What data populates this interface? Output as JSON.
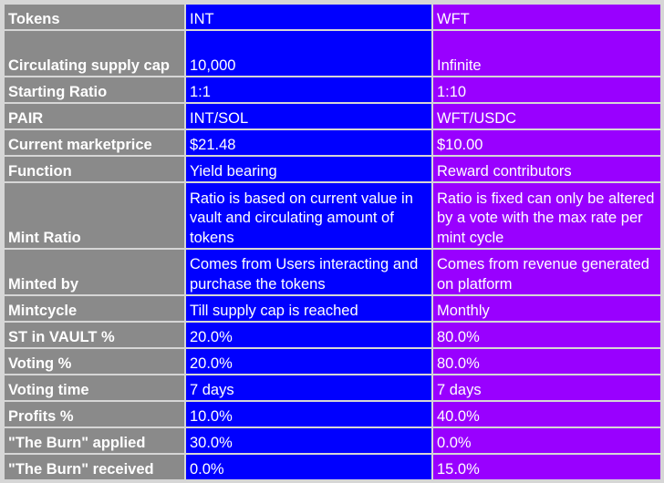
{
  "table": {
    "rows": [
      {
        "label": "Tokens",
        "int": "INT",
        "wft": "WFT"
      },
      {
        "label": "Circulating supply cap",
        "int": "10,000",
        "wft": "Infinite"
      },
      {
        "label": "Starting Ratio",
        "int": "1:1",
        "wft": "1:10"
      },
      {
        "label": "PAIR",
        "int": "INT/SOL",
        "wft": "WFT/USDC"
      },
      {
        "label": "Current marketprice",
        "int": "$21.48",
        "wft": "$10.00"
      },
      {
        "label": "Function",
        "int": "Yield bearing",
        "wft": "Reward contributors"
      },
      {
        "label": "Mint Ratio",
        "int": "Ratio is based on current value in vault and circulating amount of tokens",
        "wft": "Ratio is fixed can only be altered by a vote with the max rate per mint cycle"
      },
      {
        "label": "Minted by",
        "int": "Comes from Users interacting and purchase the tokens",
        "wft": "Comes from revenue generated on platform"
      },
      {
        "label": "Mintcycle",
        "int": "Till supply cap is reached",
        "wft": "Monthly"
      },
      {
        "label": "ST in VAULT %",
        "int": "20.0%",
        "wft": "80.0%"
      },
      {
        "label": "Voting %",
        "int": "20.0%",
        "wft": "80.0%"
      },
      {
        "label": "Voting time",
        "int": "7 days",
        "wft": "7 days"
      },
      {
        "label": "Profits %",
        "int": "10.0%",
        "wft": "40.0%"
      },
      {
        "label": "\"The Burn\" applied",
        "int": "30.0%",
        "wft": "0.0%"
      },
      {
        "label": "\"The Burn\" received",
        "int": "0.0%",
        "wft": "15.0%"
      }
    ]
  },
  "colors": {
    "label_bg": "#8a8a8a",
    "int_bg": "#0000ff",
    "wft_bg": "#9900ff",
    "grid": "#d6d6d6",
    "text": "#ffffff"
  }
}
